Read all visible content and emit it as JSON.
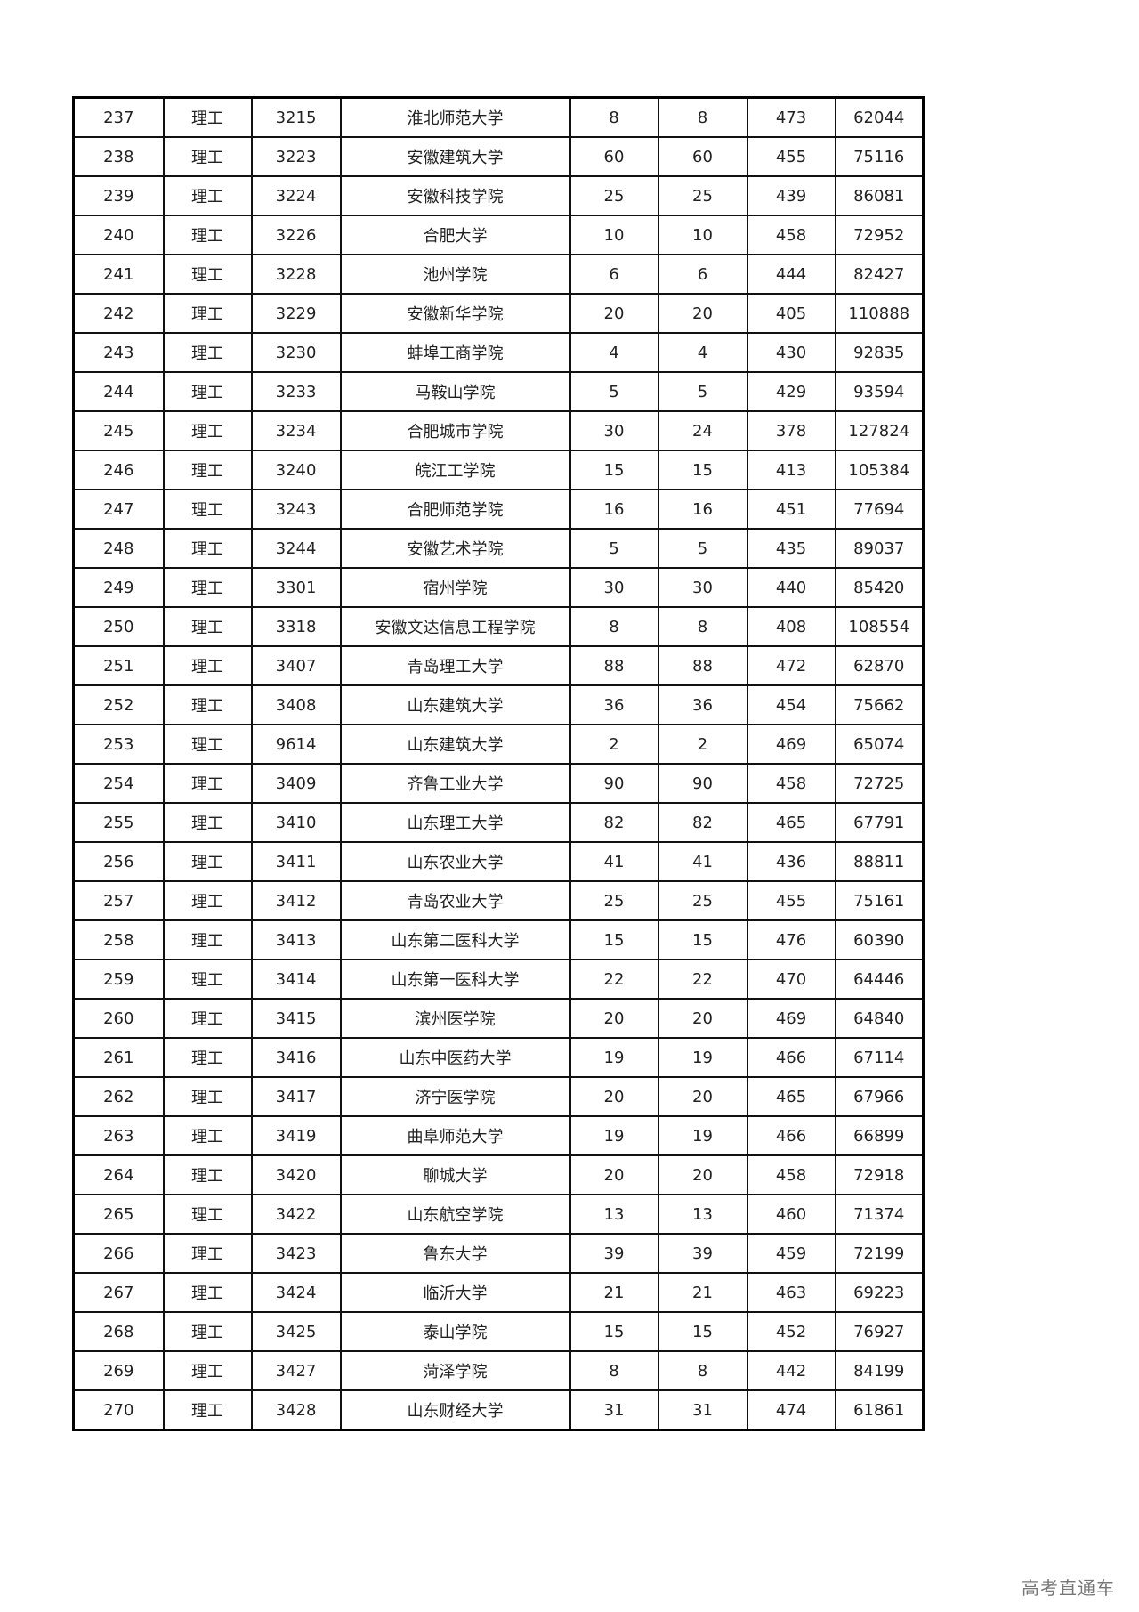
{
  "rows": [
    [
      "237",
      "理工",
      "3215",
      "淮北师范大学",
      "8",
      "8",
      "473",
      "62044"
    ],
    [
      "238",
      "理工",
      "3223",
      "安徽建筑大学",
      "60",
      "60",
      "455",
      "75116"
    ],
    [
      "239",
      "理工",
      "3224",
      "安徽科技学院",
      "25",
      "25",
      "439",
      "86081"
    ],
    [
      "240",
      "理工",
      "3226",
      "合肥大学",
      "10",
      "10",
      "458",
      "72952"
    ],
    [
      "241",
      "理工",
      "3228",
      "池州学院",
      "6",
      "6",
      "444",
      "82427"
    ],
    [
      "242",
      "理工",
      "3229",
      "安徽新华学院",
      "20",
      "20",
      "405",
      "110888"
    ],
    [
      "243",
      "理工",
      "3230",
      "蚌埠工商学院",
      "4",
      "4",
      "430",
      "92835"
    ],
    [
      "244",
      "理工",
      "3233",
      "马鞍山学院",
      "5",
      "5",
      "429",
      "93594"
    ],
    [
      "245",
      "理工",
      "3234",
      "合肥城市学院",
      "30",
      "24",
      "378",
      "127824"
    ],
    [
      "246",
      "理工",
      "3240",
      "皖江工学院",
      "15",
      "15",
      "413",
      "105384"
    ],
    [
      "247",
      "理工",
      "3243",
      "合肥师范学院",
      "16",
      "16",
      "451",
      "77694"
    ],
    [
      "248",
      "理工",
      "3244",
      "安徽艺术学院",
      "5",
      "5",
      "435",
      "89037"
    ],
    [
      "249",
      "理工",
      "3301",
      "宿州学院",
      "30",
      "30",
      "440",
      "85420"
    ],
    [
      "250",
      "理工",
      "3318",
      "安徽文达信息工程学院",
      "8",
      "8",
      "408",
      "108554"
    ],
    [
      "251",
      "理工",
      "3407",
      "青岛理工大学",
      "88",
      "88",
      "472",
      "62870"
    ],
    [
      "252",
      "理工",
      "3408",
      "山东建筑大学",
      "36",
      "36",
      "454",
      "75662"
    ],
    [
      "253",
      "理工",
      "9614",
      "山东建筑大学",
      "2",
      "2",
      "469",
      "65074"
    ],
    [
      "254",
      "理工",
      "3409",
      "齐鲁工业大学",
      "90",
      "90",
      "458",
      "72725"
    ],
    [
      "255",
      "理工",
      "3410",
      "山东理工大学",
      "82",
      "82",
      "465",
      "67791"
    ],
    [
      "256",
      "理工",
      "3411",
      "山东农业大学",
      "41",
      "41",
      "436",
      "88811"
    ],
    [
      "257",
      "理工",
      "3412",
      "青岛农业大学",
      "25",
      "25",
      "455",
      "75161"
    ],
    [
      "258",
      "理工",
      "3413",
      "山东第二医科大学",
      "15",
      "15",
      "476",
      "60390"
    ],
    [
      "259",
      "理工",
      "3414",
      "山东第一医科大学",
      "22",
      "22",
      "470",
      "64446"
    ],
    [
      "260",
      "理工",
      "3415",
      "滨州医学院",
      "20",
      "20",
      "469",
      "64840"
    ],
    [
      "261",
      "理工",
      "3416",
      "山东中医药大学",
      "19",
      "19",
      "466",
      "67114"
    ],
    [
      "262",
      "理工",
      "3417",
      "济宁医学院",
      "20",
      "20",
      "465",
      "67966"
    ],
    [
      "263",
      "理工",
      "3419",
      "曲阜师范大学",
      "19",
      "19",
      "466",
      "66899"
    ],
    [
      "264",
      "理工",
      "3420",
      "聊城大学",
      "20",
      "20",
      "458",
      "72918"
    ],
    [
      "265",
      "理工",
      "3422",
      "山东航空学院",
      "13",
      "13",
      "460",
      "71374"
    ],
    [
      "266",
      "理工",
      "3423",
      "鲁东大学",
      "39",
      "39",
      "459",
      "72199"
    ],
    [
      "267",
      "理工",
      "3424",
      "临沂大学",
      "21",
      "21",
      "463",
      "69223"
    ],
    [
      "268",
      "理工",
      "3425",
      "泰山学院",
      "15",
      "15",
      "452",
      "76927"
    ],
    [
      "269",
      "理工",
      "3427",
      "菏泽学院",
      "8",
      "8",
      "442",
      "84199"
    ],
    [
      "270",
      "理工",
      "3428",
      "山东财经大学",
      "31",
      "31",
      "474",
      "61861"
    ]
  ],
  "watermark": "高考直通车"
}
